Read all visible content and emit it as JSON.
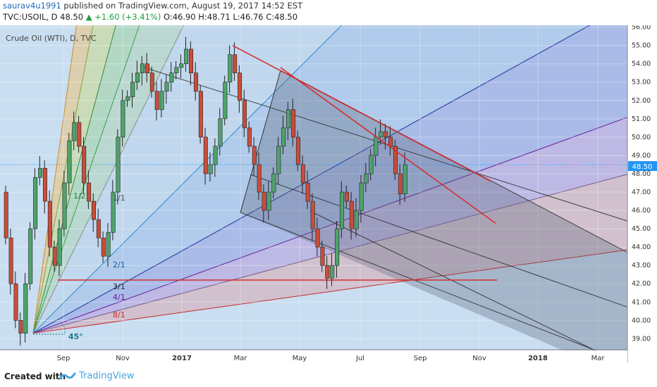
{
  "header": {
    "author": "saurav4u1991",
    "published_text": " published on TradingView.com, August 19, 2017 14:52 EST",
    "symbol_line_prefix": "TVC:USOIL, D  48.50 ",
    "change_text": "▲ +1.60 (+3.41%)",
    "ohlc_text": " O:46.90 H:48.71 L:46.76 C:48.50"
  },
  "footer": {
    "created_with": "Created with",
    "brand": "TradingView"
  },
  "chart_data": {
    "type": "candlestick",
    "title": "Crude Oil (WTI), D, TVC",
    "ylim": [
      38.4,
      56.1
    ],
    "y_ticks": [
      "39.00",
      "40.00",
      "41.00",
      "42.00",
      "43.00",
      "44.00",
      "45.00",
      "46.00",
      "47.00",
      "48.00",
      "49.00",
      "50.00",
      "51.00",
      "52.00",
      "53.00",
      "54.00",
      "55.00",
      "56.00"
    ],
    "x_ticks": [
      {
        "label": "Sep",
        "bold": false
      },
      {
        "label": "Nov",
        "bold": false
      },
      {
        "label": "2017",
        "bold": true
      },
      {
        "label": "Mar",
        "bold": false
      },
      {
        "label": "May",
        "bold": false
      },
      {
        "label": "Jul",
        "bold": false
      },
      {
        "label": "Sep",
        "bold": false
      },
      {
        "label": "Nov",
        "bold": false
      },
      {
        "label": "2018",
        "bold": true
      },
      {
        "label": "Mar",
        "bold": false
      }
    ],
    "last_price": "48.50",
    "price_path": [
      47.0,
      44.5,
      42.0,
      40.0,
      39.3,
      42.0,
      45.0,
      47.8,
      48.3,
      46.5,
      44.0,
      43.0,
      45.0,
      47.5,
      49.8,
      50.8,
      49.5,
      47.5,
      46.5,
      45.5,
      44.5,
      43.5,
      44.8,
      47.0,
      50.0,
      52.0,
      52.2,
      53.0,
      53.5,
      54.0,
      53.5,
      52.5,
      51.5,
      52.5,
      53.0,
      53.5,
      53.8,
      54.0,
      54.8,
      53.5,
      52.5,
      50.0,
      48.0,
      48.5,
      49.5,
      51.0,
      53.0,
      54.5,
      53.5,
      52.0,
      50.5,
      49.5,
      48.5,
      47.0,
      46.0,
      47.0,
      48.0,
      49.5,
      50.5,
      51.5,
      50.0,
      48.5,
      47.5,
      46.5,
      45.0,
      44.0,
      43.0,
      42.3,
      43.0,
      45.0,
      47.0,
      46.5,
      45.0,
      46.0,
      47.5,
      48.0,
      49.0,
      50.0,
      50.3,
      50.0,
      49.5,
      48.0,
      46.9,
      48.5
    ],
    "fan_labels": [
      {
        "text": "1/2",
        "color": "#2e7d32"
      },
      {
        "text": "1/1",
        "color": "#555555"
      },
      {
        "text": "2/1",
        "color": "#1e5aa8"
      },
      {
        "text": "3/1",
        "color": "#222222"
      },
      {
        "text": "4/1",
        "color": "#6a1b9a"
      },
      {
        "text": "8/1",
        "color": "#c62828"
      }
    ],
    "angle_label": "45°",
    "horizontal_level": 42.2
  }
}
